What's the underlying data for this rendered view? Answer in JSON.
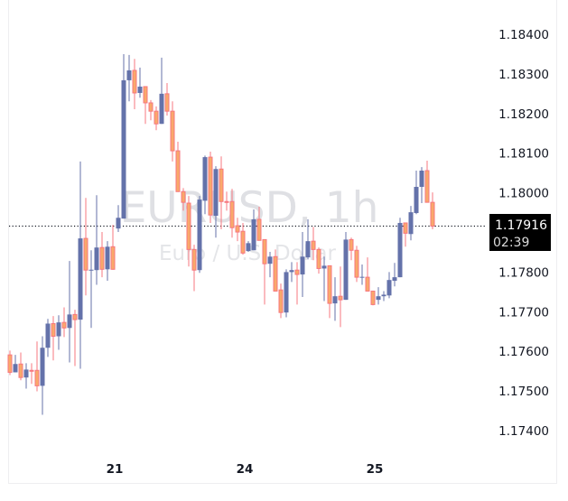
{
  "chart_data": {
    "type": "candlestick",
    "symbol": "EURUSD",
    "interval": "1h",
    "description": "Euro / U.S. Dollar",
    "y_ticks": [
      "1.18400",
      "1.18300",
      "1.18200",
      "1.18100",
      "1.18000",
      "1.17800",
      "1.17700",
      "1.17600",
      "1.17500",
      "1.17400"
    ],
    "ylim": [
      1.17335,
      1.18487
    ],
    "x_labels": [
      {
        "label": "21",
        "candle": 19
      },
      {
        "label": "24",
        "candle": 43
      },
      {
        "label": "25",
        "candle": 67
      }
    ],
    "last_price": "1.17916",
    "countdown": "02:39",
    "colors": {
      "up": "#6472aa",
      "down_fill": "#f9a96b",
      "down_border": "#f7777f",
      "label_bg": "#000000"
    },
    "ohlc": [
      [
        1.17591,
        1.17602,
        1.1754,
        1.17547
      ],
      [
        1.17547,
        1.17591,
        1.17547,
        1.17568
      ],
      [
        1.17568,
        1.17597,
        1.17527,
        1.17534
      ],
      [
        1.17534,
        1.1757,
        1.17506,
        1.17554
      ],
      [
        1.17552,
        1.1757,
        1.17518,
        1.1755
      ],
      [
        1.17552,
        1.17625,
        1.17499,
        1.17513
      ],
      [
        1.17513,
        1.17638,
        1.1744,
        1.17609
      ],
      [
        1.17609,
        1.17682,
        1.17586,
        1.1767
      ],
      [
        1.1767,
        1.17689,
        1.17577,
        1.17638
      ],
      [
        1.17638,
        1.17691,
        1.17604,
        1.17673
      ],
      [
        1.17673,
        1.17711,
        1.17636,
        1.17659
      ],
      [
        1.17659,
        1.17828,
        1.17572,
        1.17693
      ],
      [
        1.17693,
        1.17705,
        1.17563,
        1.1768
      ],
      [
        1.1768,
        1.18079,
        1.17556,
        1.17885
      ],
      [
        1.17885,
        1.17987,
        1.17741,
        1.17805
      ],
      [
        1.17805,
        1.17855,
        1.17659,
        1.17806
      ],
      [
        1.17805,
        1.17994,
        1.17768,
        1.17862
      ],
      [
        1.17862,
        1.17901,
        1.17787,
        1.17807
      ],
      [
        1.17807,
        1.17878,
        1.17778,
        1.17864
      ],
      [
        1.17864,
        1.17919,
        1.17806,
        1.17807
      ],
      [
        1.1791,
        1.17969,
        1.17901,
        1.17937
      ],
      [
        1.17935,
        1.1835,
        1.17935,
        1.18284
      ],
      [
        1.18284,
        1.18348,
        1.18231,
        1.18309
      ],
      [
        1.18309,
        1.18338,
        1.18211,
        1.18252
      ],
      [
        1.18252,
        1.18316,
        1.1824,
        1.18268
      ],
      [
        1.18268,
        1.18268,
        1.18174,
        1.18227
      ],
      [
        1.18227,
        1.18234,
        1.18183,
        1.18206
      ],
      [
        1.18206,
        1.18218,
        1.18158,
        1.18174
      ],
      [
        1.18174,
        1.18341,
        1.18174,
        1.1825
      ],
      [
        1.1825,
        1.18277,
        1.18195,
        1.18206
      ],
      [
        1.18206,
        1.18231,
        1.18079,
        1.18106
      ],
      [
        1.18106,
        1.18129,
        1.18003,
        1.18003
      ],
      [
        1.18003,
        1.18012,
        1.17955,
        1.17976
      ],
      [
        1.17974,
        1.17992,
        1.17814,
        1.17857
      ],
      [
        1.17857,
        1.17869,
        1.17752,
        1.17805
      ],
      [
        1.17805,
        1.17992,
        1.17798,
        1.17983
      ],
      [
        1.1798,
        1.18094,
        1.17946,
        1.1809
      ],
      [
        1.1809,
        1.18104,
        1.17924,
        1.17944
      ],
      [
        1.17942,
        1.18067,
        1.17887,
        1.1806
      ],
      [
        1.1806,
        1.18092,
        1.17908,
        1.17978
      ],
      [
        1.17978,
        1.18003,
        1.17955,
        1.17977
      ],
      [
        1.17978,
        1.1801,
        1.17887,
        1.17912
      ],
      [
        1.17917,
        1.17937,
        1.17878,
        1.17901
      ],
      [
        1.17903,
        1.17924,
        1.17844,
        1.17848
      ],
      [
        1.17853,
        1.17878,
        1.17851,
        1.17873
      ],
      [
        1.17855,
        1.17958,
        1.17855,
        1.17933
      ],
      [
        1.17933,
        1.17965,
        1.1788,
        1.1788
      ],
      [
        1.17882,
        1.17882,
        1.17718,
        1.17821
      ],
      [
        1.17821,
        1.17851,
        1.17787,
        1.17839
      ],
      [
        1.17839,
        1.17857,
        1.17752,
        1.17752
      ],
      [
        1.17755,
        1.17771,
        1.17684,
        1.17698
      ],
      [
        1.17698,
        1.17807,
        1.17686,
        1.178
      ],
      [
        1.178,
        1.17825,
        1.17775,
        1.17805
      ],
      [
        1.17805,
        1.17825,
        1.17718,
        1.17794
      ],
      [
        1.17794,
        1.17901,
        1.17737,
        1.17839
      ],
      [
        1.17837,
        1.17933,
        1.17832,
        1.17878
      ],
      [
        1.17878,
        1.17914,
        1.1783,
        1.17857
      ],
      [
        1.17857,
        1.17862,
        1.17796,
        1.17809
      ],
      [
        1.17809,
        1.17839,
        1.17727,
        1.17816
      ],
      [
        1.17816,
        1.17816,
        1.17684,
        1.17721
      ],
      [
        1.17721,
        1.17787,
        1.17677,
        1.17739
      ],
      [
        1.17739,
        1.17814,
        1.17661,
        1.1773
      ],
      [
        1.1773,
        1.17901,
        1.1773,
        1.17882
      ],
      [
        1.17882,
        1.17887,
        1.1783,
        1.17855
      ],
      [
        1.17855,
        1.17866,
        1.17775,
        1.17787
      ],
      [
        1.17787,
        1.17819,
        1.17768,
        1.17788
      ],
      [
        1.17787,
        1.17837,
        1.17752,
        1.17752
      ],
      [
        1.17752,
        1.17752,
        1.17716,
        1.17718
      ],
      [
        1.1773,
        1.17762,
        1.17718,
        1.17739
      ],
      [
        1.17739,
        1.17752,
        1.17727,
        1.17743
      ],
      [
        1.17741,
        1.178,
        1.17734,
        1.1778
      ],
      [
        1.17778,
        1.17823,
        1.17764,
        1.17787
      ],
      [
        1.17787,
        1.17937,
        1.17787,
        1.17924
      ],
      [
        1.17924,
        1.17924,
        1.17864,
        1.17898
      ],
      [
        1.17896,
        1.17967,
        1.1788,
        1.17951
      ],
      [
        1.17949,
        1.18056,
        1.17946,
        1.18015
      ],
      [
        1.18015,
        1.18065,
        1.17974,
        1.18056
      ],
      [
        1.18056,
        1.18081,
        1.17976,
        1.17976
      ],
      [
        1.17976,
        1.18001,
        1.17908,
        1.17916
      ]
    ]
  }
}
